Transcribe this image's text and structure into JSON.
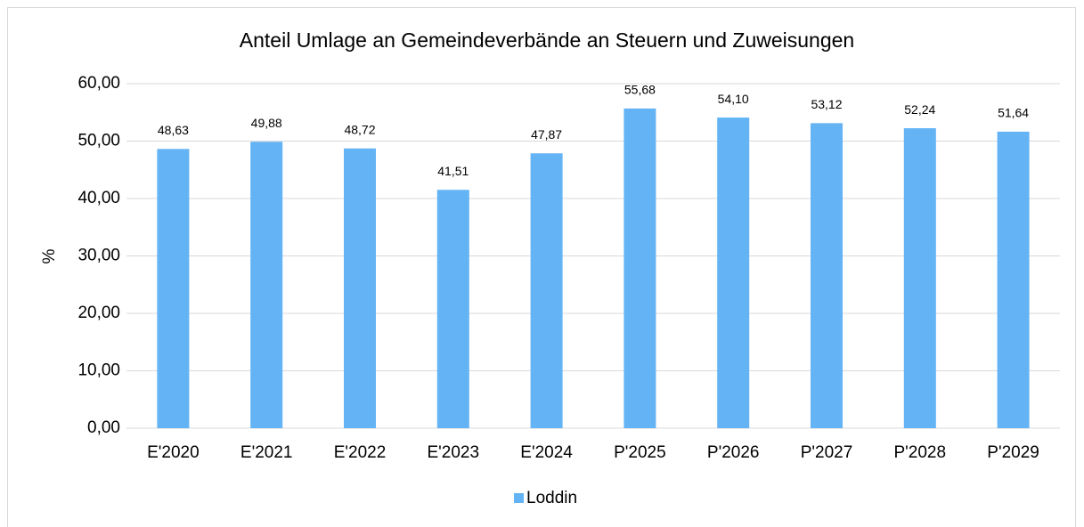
{
  "chart_data": {
    "type": "bar",
    "title": "Anteil Umlage an Gemeindeverbände an Steuern und Zuweisungen",
    "y_label": "%",
    "categories": [
      "E'2020",
      "E'2021",
      "E'2022",
      "E'2023",
      "E'2024",
      "P'2025",
      "P'2026",
      "P'2027",
      "P'2028",
      "P'2029"
    ],
    "series": [
      {
        "name": "Loddin",
        "color": "#63b3f5",
        "values": [
          48.63,
          49.88,
          48.72,
          41.51,
          47.87,
          55.68,
          54.1,
          53.12,
          52.24,
          51.64
        ],
        "value_labels": [
          "48,63",
          "49,88",
          "48,72",
          "41,51",
          "47,87",
          "55,68",
          "54,10",
          "53,12",
          "52,24",
          "51,64"
        ]
      }
    ],
    "ylim": [
      0,
      60
    ],
    "yticks": [
      {
        "value": 0,
        "label": "0,00"
      },
      {
        "value": 10,
        "label": "10,00"
      },
      {
        "value": 20,
        "label": "20,00"
      },
      {
        "value": 30,
        "label": "30,00"
      },
      {
        "value": 40,
        "label": "40,00"
      },
      {
        "value": 50,
        "label": "50,00"
      },
      {
        "value": 60,
        "label": "60,00"
      }
    ],
    "grid": true,
    "legend": "bottom"
  }
}
